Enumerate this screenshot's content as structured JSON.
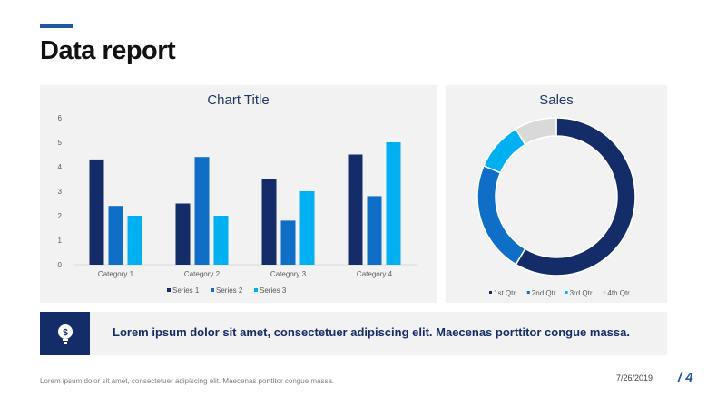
{
  "page": {
    "title": "Data report",
    "footer_text": "Lorem ipsum dolor sit amet, consectetuer adipiscing elit. Maecenas porttitor congue massa.",
    "date": "7/26/2019",
    "page_number": "/ 4"
  },
  "banner": {
    "text": "Lorem ipsum dolor sit amet, consectetuer adipiscing elit. Maecenas porttitor congue massa.",
    "icon": "lightbulb-dollar-icon"
  },
  "colors": {
    "accent": "#1F57A3",
    "navy": "#142C68",
    "panel": "#F2F2F2"
  },
  "chart_data": [
    {
      "type": "bar",
      "title": "Chart Title",
      "categories": [
        "Category 1",
        "Category 2",
        "Category 3",
        "Category 4"
      ],
      "series": [
        {
          "name": "Series 1",
          "values": [
            4.3,
            2.5,
            3.5,
            4.5
          ],
          "color": "#142C68"
        },
        {
          "name": "Series 2",
          "values": [
            2.4,
            4.4,
            1.8,
            2.8
          ],
          "color": "#0F6FC6"
        },
        {
          "name": "Series 3",
          "values": [
            2,
            2,
            3,
            5
          ],
          "color": "#00B0F0"
        }
      ],
      "ylim": [
        0,
        6
      ],
      "yticks": [
        "0",
        "1",
        "2",
        "3",
        "4",
        "5",
        "6"
      ],
      "legend": "bottom"
    },
    {
      "type": "pie",
      "title": "Sales",
      "labels": [
        "1st Qtr",
        "2nd Qtr",
        "3rd Qtr",
        "4th Qtr"
      ],
      "values": [
        8.2,
        3.2,
        1.4,
        1.2
      ],
      "colors": [
        "#142C68",
        "#0F6FC6",
        "#00B0F0",
        "#D9D9D9"
      ],
      "legend": "bottom"
    }
  ]
}
